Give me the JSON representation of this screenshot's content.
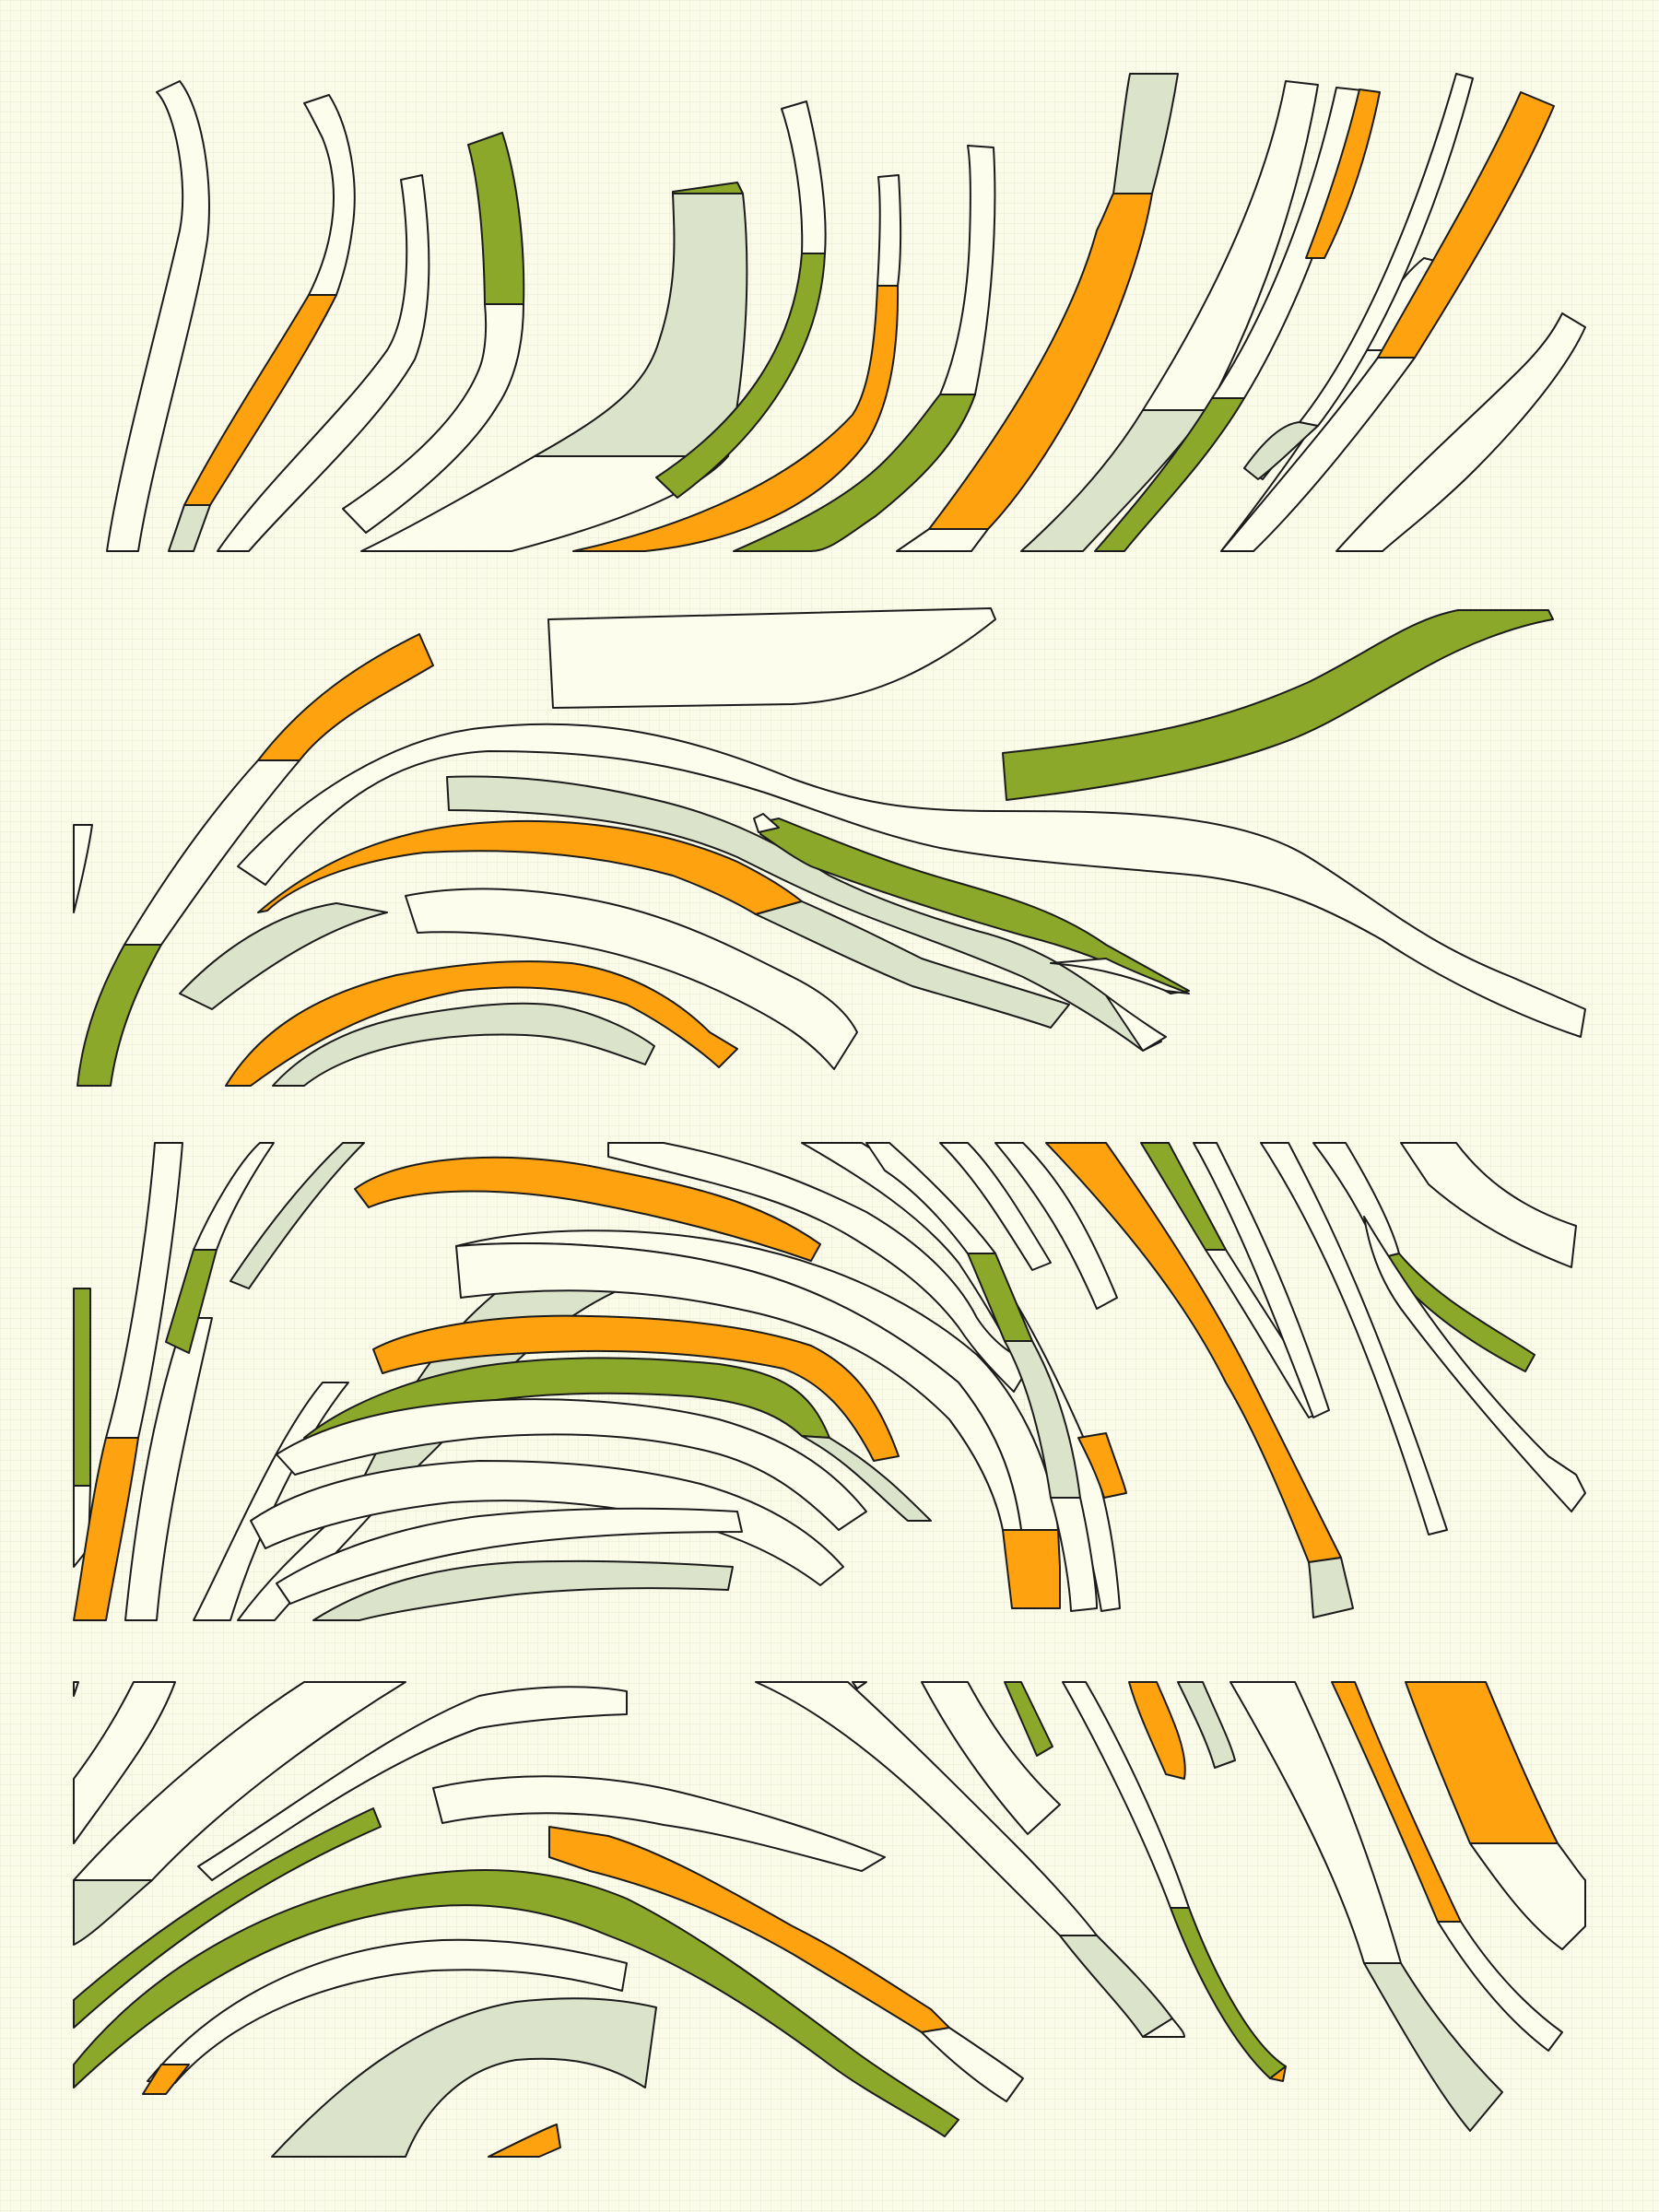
{
  "artwork": {
    "background": "#fbfbe9",
    "grid_color": "#e6e8cf",
    "outline_color": "#1b1b1b",
    "palette": {
      "cream": "#fdfdee",
      "sage": "#dbe3cb",
      "orange": "#ffa20f",
      "green": "#8ba82a"
    },
    "bands": [
      {
        "name": "band-1",
        "ribbons": 22
      },
      {
        "name": "band-2",
        "ribbons": 12
      },
      {
        "name": "band-3",
        "ribbons": 30
      },
      {
        "name": "band-4",
        "ribbons": 24
      }
    ]
  }
}
